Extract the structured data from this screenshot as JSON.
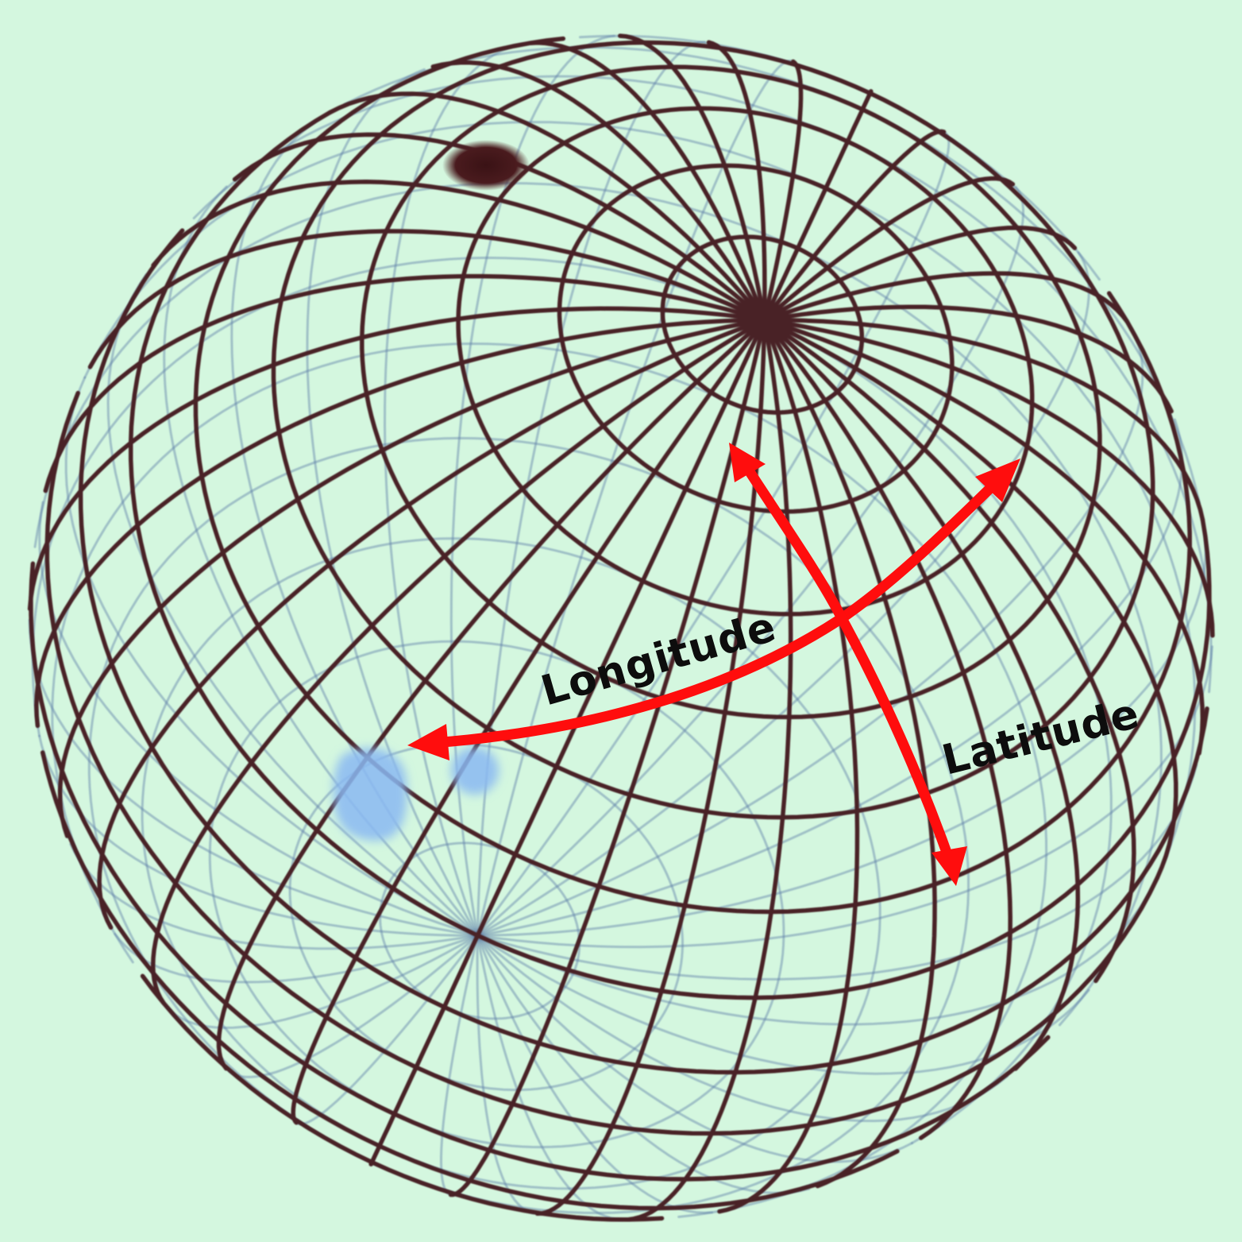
{
  "labels": {
    "longitude": "Longitude",
    "latitude": "Latitude"
  },
  "colors": {
    "background": "#d4f7df",
    "front_grid": "#4a2126",
    "back_grid": "#5d7fa8",
    "arrow": "#ff0d0d",
    "pole": "#4a1b1e",
    "text": "#0d0d0d",
    "blue_patch": "#8ab8f2"
  },
  "grid": {
    "meridian_count": 36,
    "latitude_step_degrees": 10
  }
}
